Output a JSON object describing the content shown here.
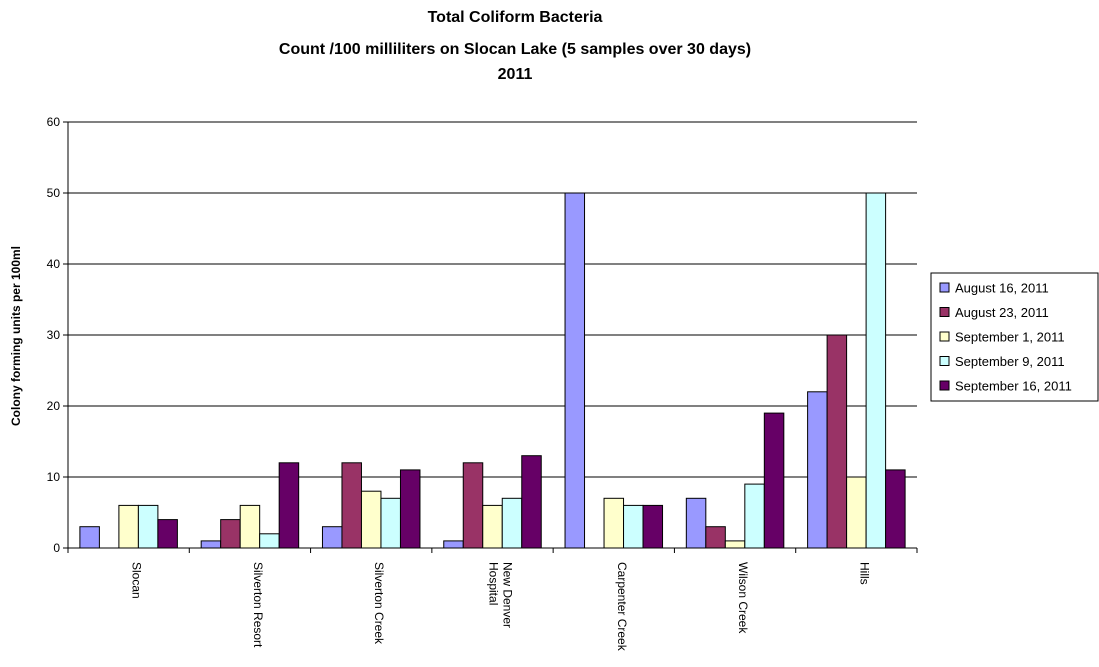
{
  "chart_data": {
    "type": "bar",
    "title_lines": [
      "Total Coliform Bacteria",
      "Count /100 milliliters on Slocan Lake (5 samples over 30 days)",
      "2011"
    ],
    "xlabel": "",
    "ylabel": "Colony forming units per 100ml",
    "ylim": [
      0,
      60
    ],
    "yticks": [
      0,
      10,
      20,
      30,
      40,
      50,
      60
    ],
    "grid": true,
    "legend_position": "right",
    "categories": [
      [
        "Slocan"
      ],
      [
        "Silverton Resort"
      ],
      [
        "Silverton Creek"
      ],
      [
        "New Denver",
        "Hospital"
      ],
      [
        "Carpenter Creek"
      ],
      [
        "Wilson Creek"
      ],
      [
        "Hills"
      ]
    ],
    "series": [
      {
        "name": "August 16, 2011",
        "color": "#9999ff",
        "values": [
          3,
          1,
          3,
          1,
          50,
          7,
          22
        ]
      },
      {
        "name": "August 23, 2011",
        "color": "#993366",
        "values": [
          0,
          4,
          12,
          12,
          0,
          3,
          30
        ]
      },
      {
        "name": "September 1, 2011",
        "color": "#ffffcc",
        "values": [
          6,
          6,
          8,
          6,
          7,
          1,
          10
        ]
      },
      {
        "name": "September 9, 2011",
        "color": "#ccffff",
        "values": [
          6,
          2,
          7,
          7,
          6,
          9,
          50
        ]
      },
      {
        "name": "September 16, 2011",
        "color": "#660066",
        "values": [
          4,
          12,
          11,
          13,
          6,
          19,
          11
        ]
      }
    ]
  }
}
